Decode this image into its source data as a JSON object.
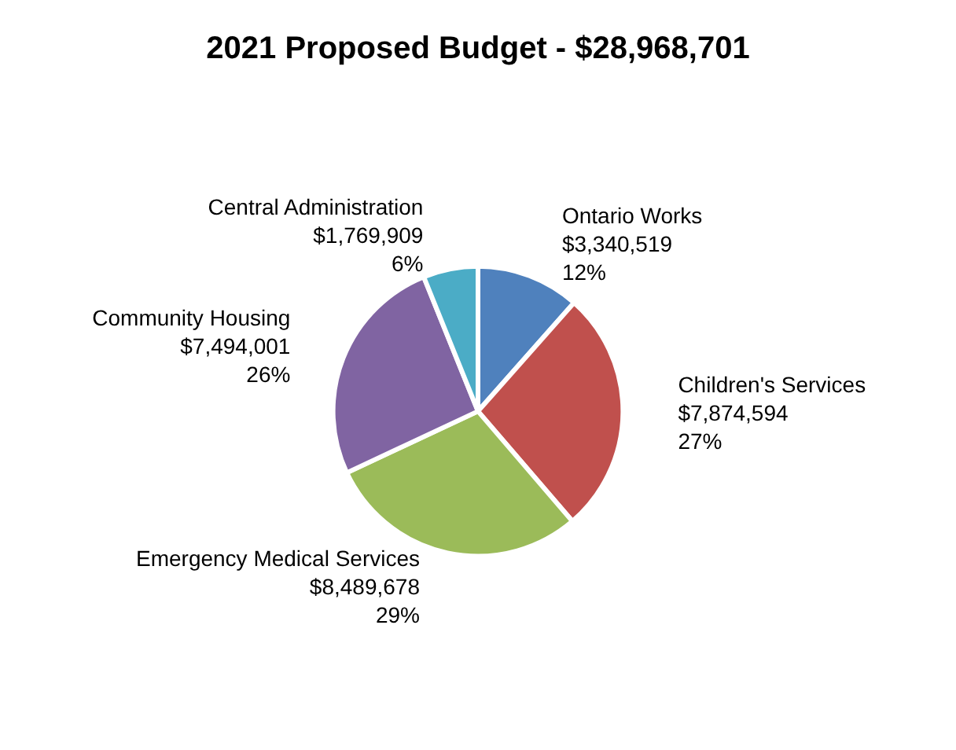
{
  "chart_data": {
    "type": "pie",
    "title": "2021 Proposed Budget - $28,968,701",
    "categories": [
      "Ontario Works",
      "Children's Services",
      "Emergency Medical Services",
      "Community Housing",
      "Central Administration"
    ],
    "values": [
      3340519,
      7874594,
      8489678,
      7494001,
      1769909
    ],
    "value_labels": [
      "$3,340,519\n12%",
      "$7,874,594\n27%",
      "$8,489,678\n29%",
      "$7,494,001\n26%",
      "$1,769,909\n6%"
    ],
    "colors": [
      "#4f81bd",
      "#c0504d",
      "#9bbb59",
      "#8064a2",
      "#4bacc6"
    ],
    "legend": false
  }
}
